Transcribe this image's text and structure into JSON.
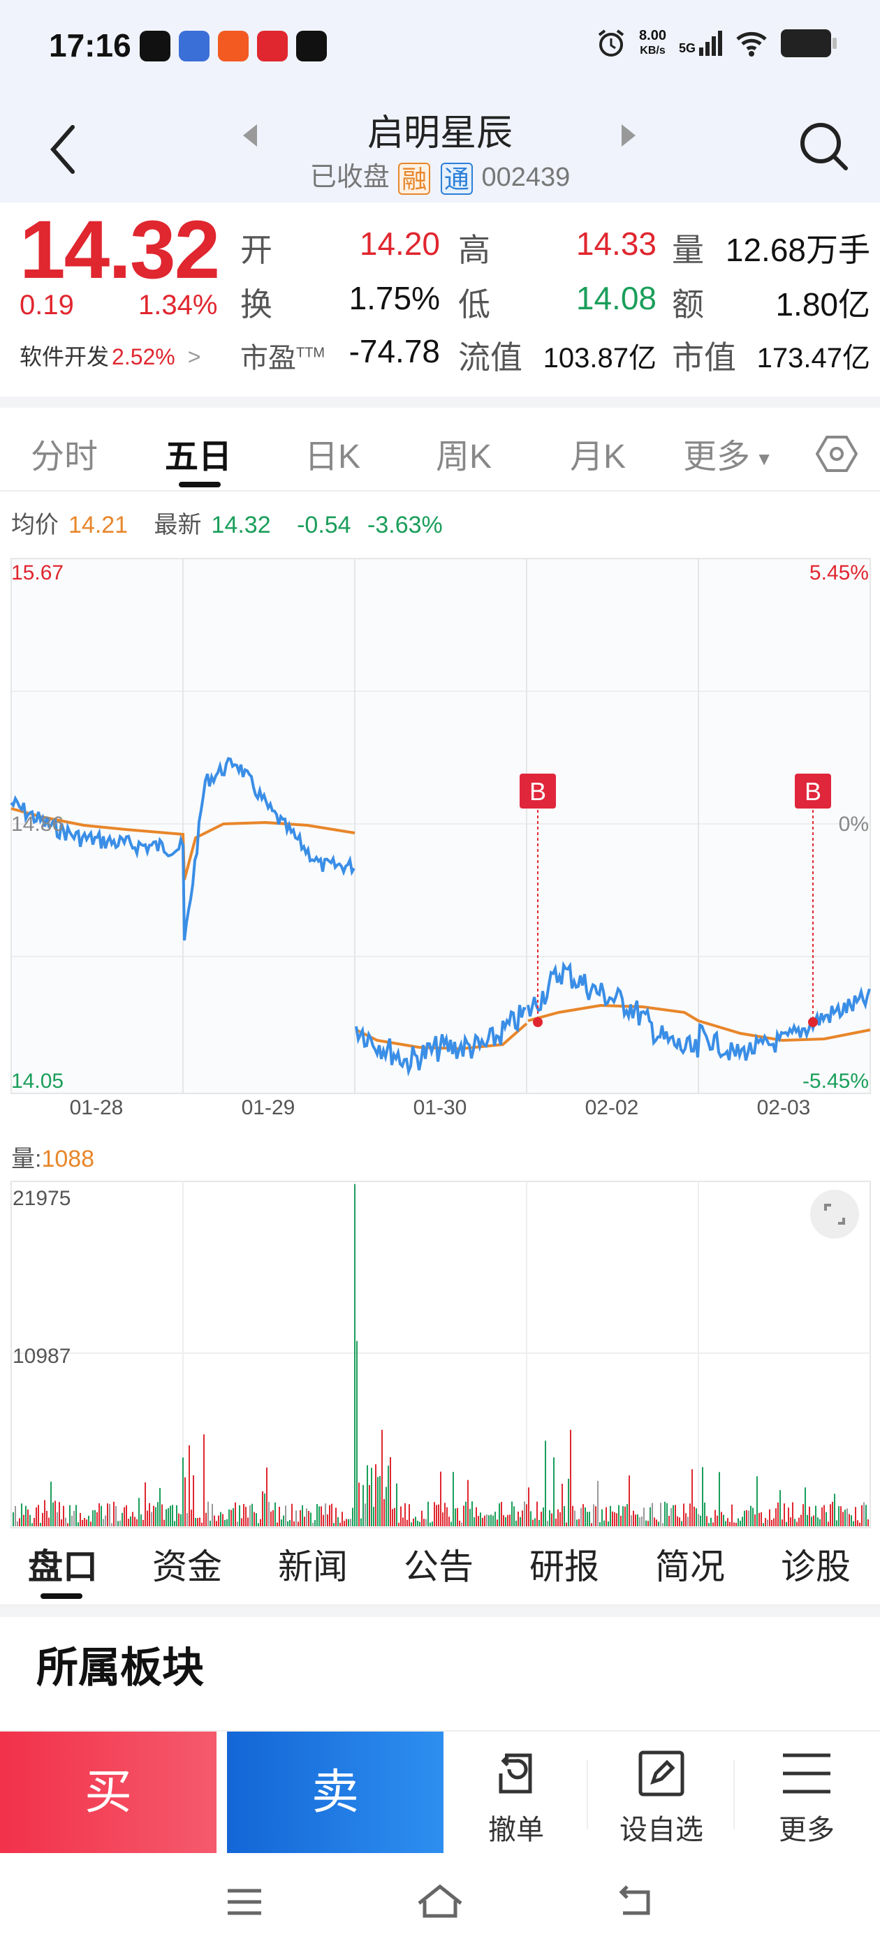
{
  "status_bar": {
    "time": "17:16",
    "net_speed_value": "8.00",
    "net_speed_unit": "KB/s",
    "signal": "5G"
  },
  "header": {
    "title": "启明星辰",
    "status": "已收盘",
    "tag_rong": "融",
    "tag_tong": "通",
    "code": "002439"
  },
  "quote": {
    "price": "14.32",
    "change": "0.19",
    "change_pct": "1.34%",
    "sector_name": "软件开发",
    "sector_pct": "2.52%",
    "open_label": "开",
    "open": "14.20",
    "high_label": "高",
    "high": "14.33",
    "volume_label": "量",
    "volume": "12.68万手",
    "turnover_label": "换",
    "turnover": "1.75%",
    "low_label": "低",
    "low": "14.08",
    "amount_label": "额",
    "amount": "1.80亿",
    "pe_label": "市盈",
    "pe_sup": "TTM",
    "pe": "-74.78",
    "float_cap_label": "流值",
    "float_cap": "103.87亿",
    "mkt_cap_label": "市值",
    "mkt_cap": "173.47亿"
  },
  "chart_tabs": [
    "分时",
    "五日",
    "日K",
    "周K",
    "月K",
    "更多"
  ],
  "info_line": {
    "avg_label": "均价",
    "avg": "14.21",
    "latest_label": "最新",
    "latest": "14.32",
    "change": "-0.54",
    "change_pct": "-3.63%"
  },
  "chart_data": {
    "type": "line",
    "x_ticks": [
      "01-28",
      "01-29",
      "01-30",
      "02-02",
      "02-03"
    ],
    "y_left": {
      "max": "15.67",
      "mid": "14.86",
      "min": "14.05"
    },
    "y_right": {
      "max": "5.45%",
      "mid": "0%",
      "min": "-5.45%"
    },
    "ylim": [
      14.05,
      15.67
    ],
    "marker_label": "B",
    "series": [
      {
        "name": "price",
        "color": "#3a8ee6"
      },
      {
        "name": "avg",
        "color": "#e8862a"
      }
    ],
    "volume": {
      "label": "量:",
      "value": "1088",
      "ticks": [
        "21975",
        "10987"
      ],
      "max": 21975
    }
  },
  "bottom_tabs": [
    "盘口",
    "资金",
    "新闻",
    "公告",
    "研报",
    "简况",
    "诊股"
  ],
  "section_title": "所属板块",
  "actions": {
    "buy": "买",
    "sell": "卖",
    "cancel": "撤单",
    "watchlist": "设自选",
    "more": "更多"
  }
}
